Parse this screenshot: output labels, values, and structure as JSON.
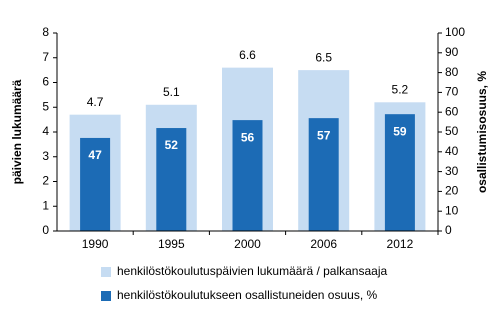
{
  "chart_data": {
    "type": "bar",
    "categories": [
      "1990",
      "1995",
      "2000",
      "2006",
      "2012"
    ],
    "series": [
      {
        "name": "henkilöstökoulutuspäivien lukumäärä / palkansaaja",
        "color": "#c6dcf2",
        "values": [
          4.7,
          5.1,
          6.6,
          6.5,
          5.2
        ]
      },
      {
        "name": "henkilöstökoulutukseen osallistuneiden osuus, %",
        "color": "#1c6bb5",
        "values": [
          47,
          52,
          56,
          57,
          59
        ],
        "axis": "y2"
      }
    ],
    "ylabel": "päivien lukumäärä",
    "y2label": "osallistumisosuus, %",
    "ylim": [
      0,
      8
    ],
    "yticks": [
      0,
      1,
      2,
      3,
      4,
      5,
      6,
      7,
      8
    ],
    "y2lim": [
      0,
      100
    ],
    "y2ticks": [
      0,
      10,
      20,
      30,
      40,
      50,
      60,
      70,
      80,
      90,
      100
    ],
    "grid": false,
    "legend": "bottom"
  }
}
